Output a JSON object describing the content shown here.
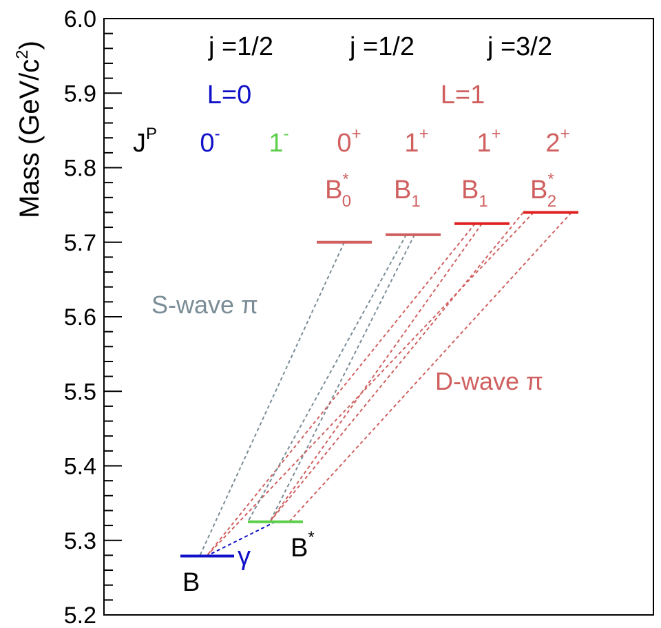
{
  "yaxis": {
    "label": "Mass (GeV/c",
    "label_sup": "2",
    "label_close": ")",
    "min": 5.2,
    "max": 6.0,
    "major_ticks": [
      "5.2",
      "5.3",
      "5.4",
      "5.5",
      "5.6",
      "5.7",
      "5.8",
      "5.9",
      "6.0"
    ],
    "minor_step": 0.02
  },
  "header": {
    "j_row": [
      "j =1/2",
      "j =1/2",
      "j =3/2"
    ],
    "l_row": [
      {
        "text": "L=0",
        "color": "#1010c8"
      },
      {
        "text": "L=1",
        "color": "#d06060"
      }
    ],
    "jp_label": {
      "base": "J",
      "sup": "P"
    },
    "jp_values": [
      {
        "base": "0",
        "sup": "-",
        "color": "#1010c8"
      },
      {
        "base": "1",
        "sup": "-",
        "color": "#5ccf4a"
      },
      {
        "base": "0",
        "sup": "+",
        "color": "#d06060"
      },
      {
        "base": "1",
        "sup": "+",
        "color": "#d06060"
      },
      {
        "base": "1",
        "sup": "+",
        "color": "#d06060"
      },
      {
        "base": "2",
        "sup": "+",
        "color": "#d06060"
      }
    ]
  },
  "states": [
    {
      "name": "B",
      "mass": 5.279,
      "color": "#1010c8",
      "label": "B",
      "label_sup": "",
      "label_sub": ""
    },
    {
      "name": "B*",
      "mass": 5.325,
      "color": "#5ccf4a",
      "label": "B",
      "label_sup": "*",
      "label_sub": ""
    },
    {
      "name": "B0*",
      "mass": 5.7,
      "color": "#d06060",
      "label": "B",
      "label_sup": "*",
      "label_sub": "0"
    },
    {
      "name": "B1 (j=1/2)",
      "mass": 5.71,
      "color": "#d06060",
      "label": "B",
      "label_sup": "",
      "label_sub": "1"
    },
    {
      "name": "B1 (j=3/2)",
      "mass": 5.725,
      "color": "#e02020",
      "label": "B",
      "label_sup": "",
      "label_sub": "1"
    },
    {
      "name": "B2*",
      "mass": 5.74,
      "color": "#e02020",
      "label": "B",
      "label_sup": "*",
      "label_sub": "2"
    }
  ],
  "transitions": [
    {
      "from": "B0*",
      "to": "B",
      "color": "#7a8c95"
    },
    {
      "from": "B1 (j=1/2)",
      "to": "B*",
      "color": "#7a8c95"
    },
    {
      "from": "B1 (j=3/2)",
      "to": "B*",
      "color": "#d06060"
    },
    {
      "from": "B2*",
      "to": "B",
      "color": "#d06060"
    },
    {
      "from": "B2*",
      "to": "B*",
      "color": "#d06060"
    },
    {
      "from": "B*",
      "to": "B",
      "color": "#1010c8"
    }
  ],
  "annotations": {
    "s_wave": "S-wave π",
    "d_wave": "D-wave π",
    "gamma": "γ"
  }
}
